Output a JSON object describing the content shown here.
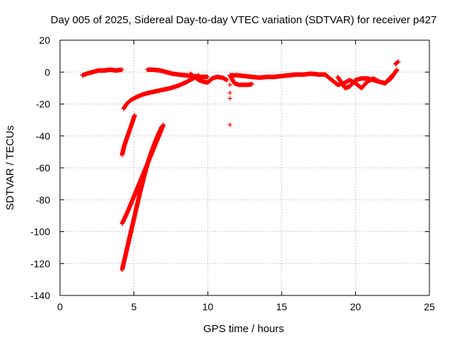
{
  "chart_data": {
    "type": "scatter",
    "title": "Day 005 of 2025, Sidereal Day-to-day VTEC variation (SDTVAR) for receiver p427",
    "xlabel": "GPS time / hours",
    "ylabel": "SDTVAR / TECUs",
    "xlim": [
      0,
      25
    ],
    "ylim": [
      -140,
      20
    ],
    "x_ticks": [
      0,
      5,
      10,
      15,
      20,
      25
    ],
    "y_ticks": [
      -140,
      -120,
      -100,
      -80,
      -60,
      -40,
      -20,
      0,
      20
    ],
    "grid": true,
    "legend": "none",
    "marker": "+",
    "series": [
      {
        "name": "SDTVAR",
        "color": "#ff0000",
        "segments": [
          {
            "x": [
              1.5,
              1.8,
              2.2,
              2.6,
              3.0,
              3.4,
              3.8,
              4.2
            ],
            "y": [
              -2,
              -1,
              0,
              1,
              1,
              1.5,
              1,
              1.5
            ]
          },
          {
            "x": [
              4.3,
              4.5,
              4.8,
              5.2,
              5.6,
              6.0,
              6.5,
              7.0,
              7.5,
              8.0,
              8.5,
              9.0,
              9.4
            ],
            "y": [
              -23,
              -20,
              -17.5,
              -15.5,
              -14,
              -13,
              -12,
              -11,
              -10,
              -8.5,
              -6.5,
              -4,
              -2
            ]
          },
          {
            "x": [
              4.2,
              4.35,
              4.5,
              4.65,
              4.8,
              4.95,
              5.05
            ],
            "y": [
              -52,
              -46,
              -42,
              -38,
              -34,
              -30,
              -27
            ]
          },
          {
            "x": [
              4.2,
              4.6,
              5.0,
              5.4,
              5.8,
              6.2,
              6.6,
              7.0
            ],
            "y": [
              -95,
              -87,
              -78,
              -69,
              -60,
              -51,
              -42,
              -33
            ]
          },
          {
            "x": [
              4.2,
              4.5,
              4.8,
              5.1,
              5.4,
              5.7,
              6.0,
              6.3,
              6.6,
              6.9
            ],
            "y": [
              -124,
              -112,
              -100,
              -88,
              -76,
              -65,
              -55,
              -47,
              -40,
              -34
            ]
          },
          {
            "x": [
              5.9,
              6.3,
              6.8,
              7.2,
              7.6,
              8.0,
              8.5,
              9.0,
              9.5,
              10.0
            ],
            "y": [
              1.5,
              1.5,
              1,
              0,
              -1,
              -1.5,
              -2,
              -2.5,
              -3,
              -3
            ]
          },
          {
            "x": [
              8.8,
              9.1,
              9.4,
              9.7,
              10.0,
              10.3,
              10.6,
              11.0,
              11.3
            ],
            "y": [
              -1,
              -3,
              -5,
              -6,
              -6.5,
              -4,
              -3,
              -3.5,
              -5
            ]
          },
          {
            "x": [
              11.5,
              11.8,
              12.1,
              12.4,
              12.7,
              13.0
            ],
            "y": [
              -2,
              -7,
              -8,
              -8,
              -8,
              -7.5
            ]
          },
          {
            "x": [
              11.5,
              12.0,
              12.5,
              13.0,
              13.5,
              14.0,
              14.5,
              15.0,
              15.5,
              16.0,
              16.5,
              17.0,
              17.5,
              18.0
            ],
            "y": [
              -2,
              -2,
              -2.5,
              -3,
              -3.5,
              -3,
              -3,
              -2.5,
              -2,
              -1.5,
              -1.5,
              -1,
              -1.5,
              -1.5
            ]
          },
          {
            "x": [
              18.0,
              18.4,
              18.8,
              19.2,
              19.6,
              20.0,
              20.4,
              20.8,
              21.2,
              21.6,
              22.0,
              22.4,
              22.8
            ],
            "y": [
              -2,
              -5,
              -8,
              -7,
              -5,
              -7,
              -10,
              -6,
              -4,
              -6,
              -7,
              -3,
              1
            ]
          },
          {
            "x": [
              18.8,
              19.0,
              19.3,
              19.6,
              20.0,
              20.4,
              20.8,
              21.2,
              21.6,
              22.0,
              22.4,
              22.8
            ],
            "y": [
              -3,
              -6,
              -10,
              -9,
              -5,
              -4,
              -4,
              -5,
              -6,
              -7,
              -4,
              1.5
            ]
          },
          {
            "x": [
              22.7,
              22.8,
              22.9
            ],
            "y": [
              5,
              6,
              6.5
            ]
          }
        ],
        "isolated_points": {
          "x": [
            11.5,
            11.5,
            11.5,
            11.5
          ],
          "y": [
            -13,
            -16.5,
            -33,
            -8
          ]
        }
      }
    ]
  }
}
